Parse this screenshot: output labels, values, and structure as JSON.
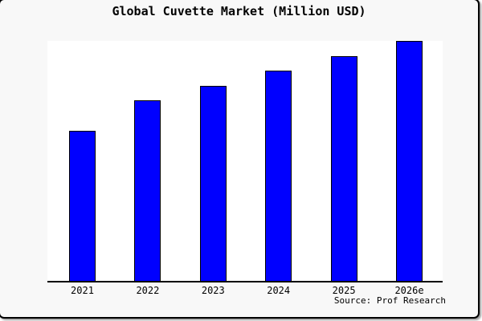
{
  "card": {
    "background_color": "#f8f8f8",
    "border_color": "#000000",
    "shadow_color": "#999999"
  },
  "title": "Global Cuvette Market (Million USD)",
  "source_note": "Source: Prof Research",
  "chart_data": {
    "type": "bar",
    "title": "Global Cuvette Market (Million USD)",
    "categories": [
      "2021",
      "2022",
      "2023",
      "2024",
      "2025",
      "2026e"
    ],
    "values_pct_of_max": [
      62.7,
      75.3,
      81.3,
      87.7,
      93.7,
      100
    ],
    "value_axis": "unlabeled - no y-axis ticks, gridlines, or data labels are shown; bar heights given as percent of tallest bar (2026e = 100)",
    "xlabel": "",
    "ylabel": "",
    "legend": "none",
    "grid": false,
    "bar_color": "#0000ff",
    "bar_border_color": "#000000",
    "plot_background": "#ffffff",
    "axis_line_color": "#000000",
    "source": "Source: Prof Research"
  }
}
